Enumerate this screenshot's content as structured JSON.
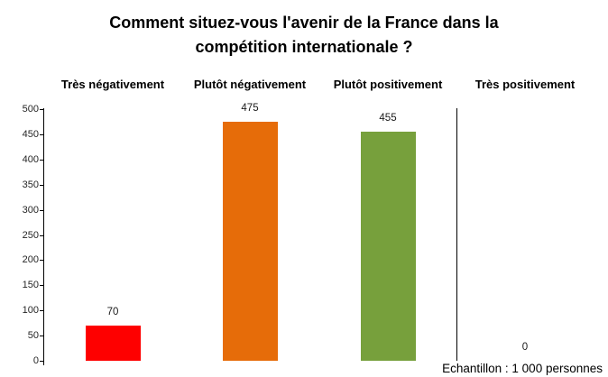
{
  "header": {
    "title_lines": [
      "Comment situez-vous l'avenir de la France dans la",
      "compétition internationale ?"
    ]
  },
  "chart_data": {
    "type": "bar",
    "title": "Comment situez-vous l'avenir de la France dans la compétition internationale ?",
    "categories": [
      "Très négativement",
      "Plutôt négativement",
      "Plutôt positivement",
      "Très positivement"
    ],
    "values": [
      70,
      475,
      455,
      0
    ],
    "value_labels": [
      "70",
      "475",
      "455",
      "0"
    ],
    "bar_colors": [
      "#fe0000",
      "#e66c09",
      "#77a03c",
      "none"
    ],
    "xlabel": "",
    "ylabel": "",
    "ylim": [
      0,
      500
    ],
    "yticks": [
      0,
      50,
      100,
      150,
      200,
      250,
      300,
      350,
      400,
      450,
      500
    ],
    "grid": false,
    "legend": "none",
    "category_labels_position": "top",
    "separator_after_category": "Plutôt positivement",
    "footnote": "Echantillon : 1 000 personnes"
  }
}
